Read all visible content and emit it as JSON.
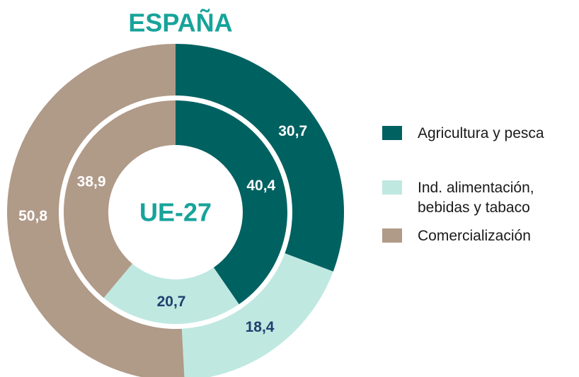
{
  "chart_data": {
    "type": "pie",
    "categories": [
      "Agricultura y pesca",
      "Ind. alimentación, bebidas y tabaco",
      "Comercialización"
    ],
    "colors": [
      "#006161",
      "#bfe8e1",
      "#b09a88"
    ],
    "series": [
      {
        "name": "ESPAÑA",
        "values": [
          30.7,
          18.4,
          50.8
        ],
        "value_labels": [
          "30,7",
          "18,4",
          "50,8"
        ],
        "label_colors": [
          "#ffffff",
          "#1f3f6e",
          "#ffffff"
        ]
      },
      {
        "name": "UE-27",
        "values": [
          40.4,
          20.7,
          38.9
        ],
        "value_labels": [
          "40,4",
          "20,7",
          "38,9"
        ],
        "label_colors": [
          "#ffffff",
          "#1f3f6e",
          "#ffffff"
        ]
      }
    ],
    "title_color": "#17a39a",
    "legend": "right"
  }
}
